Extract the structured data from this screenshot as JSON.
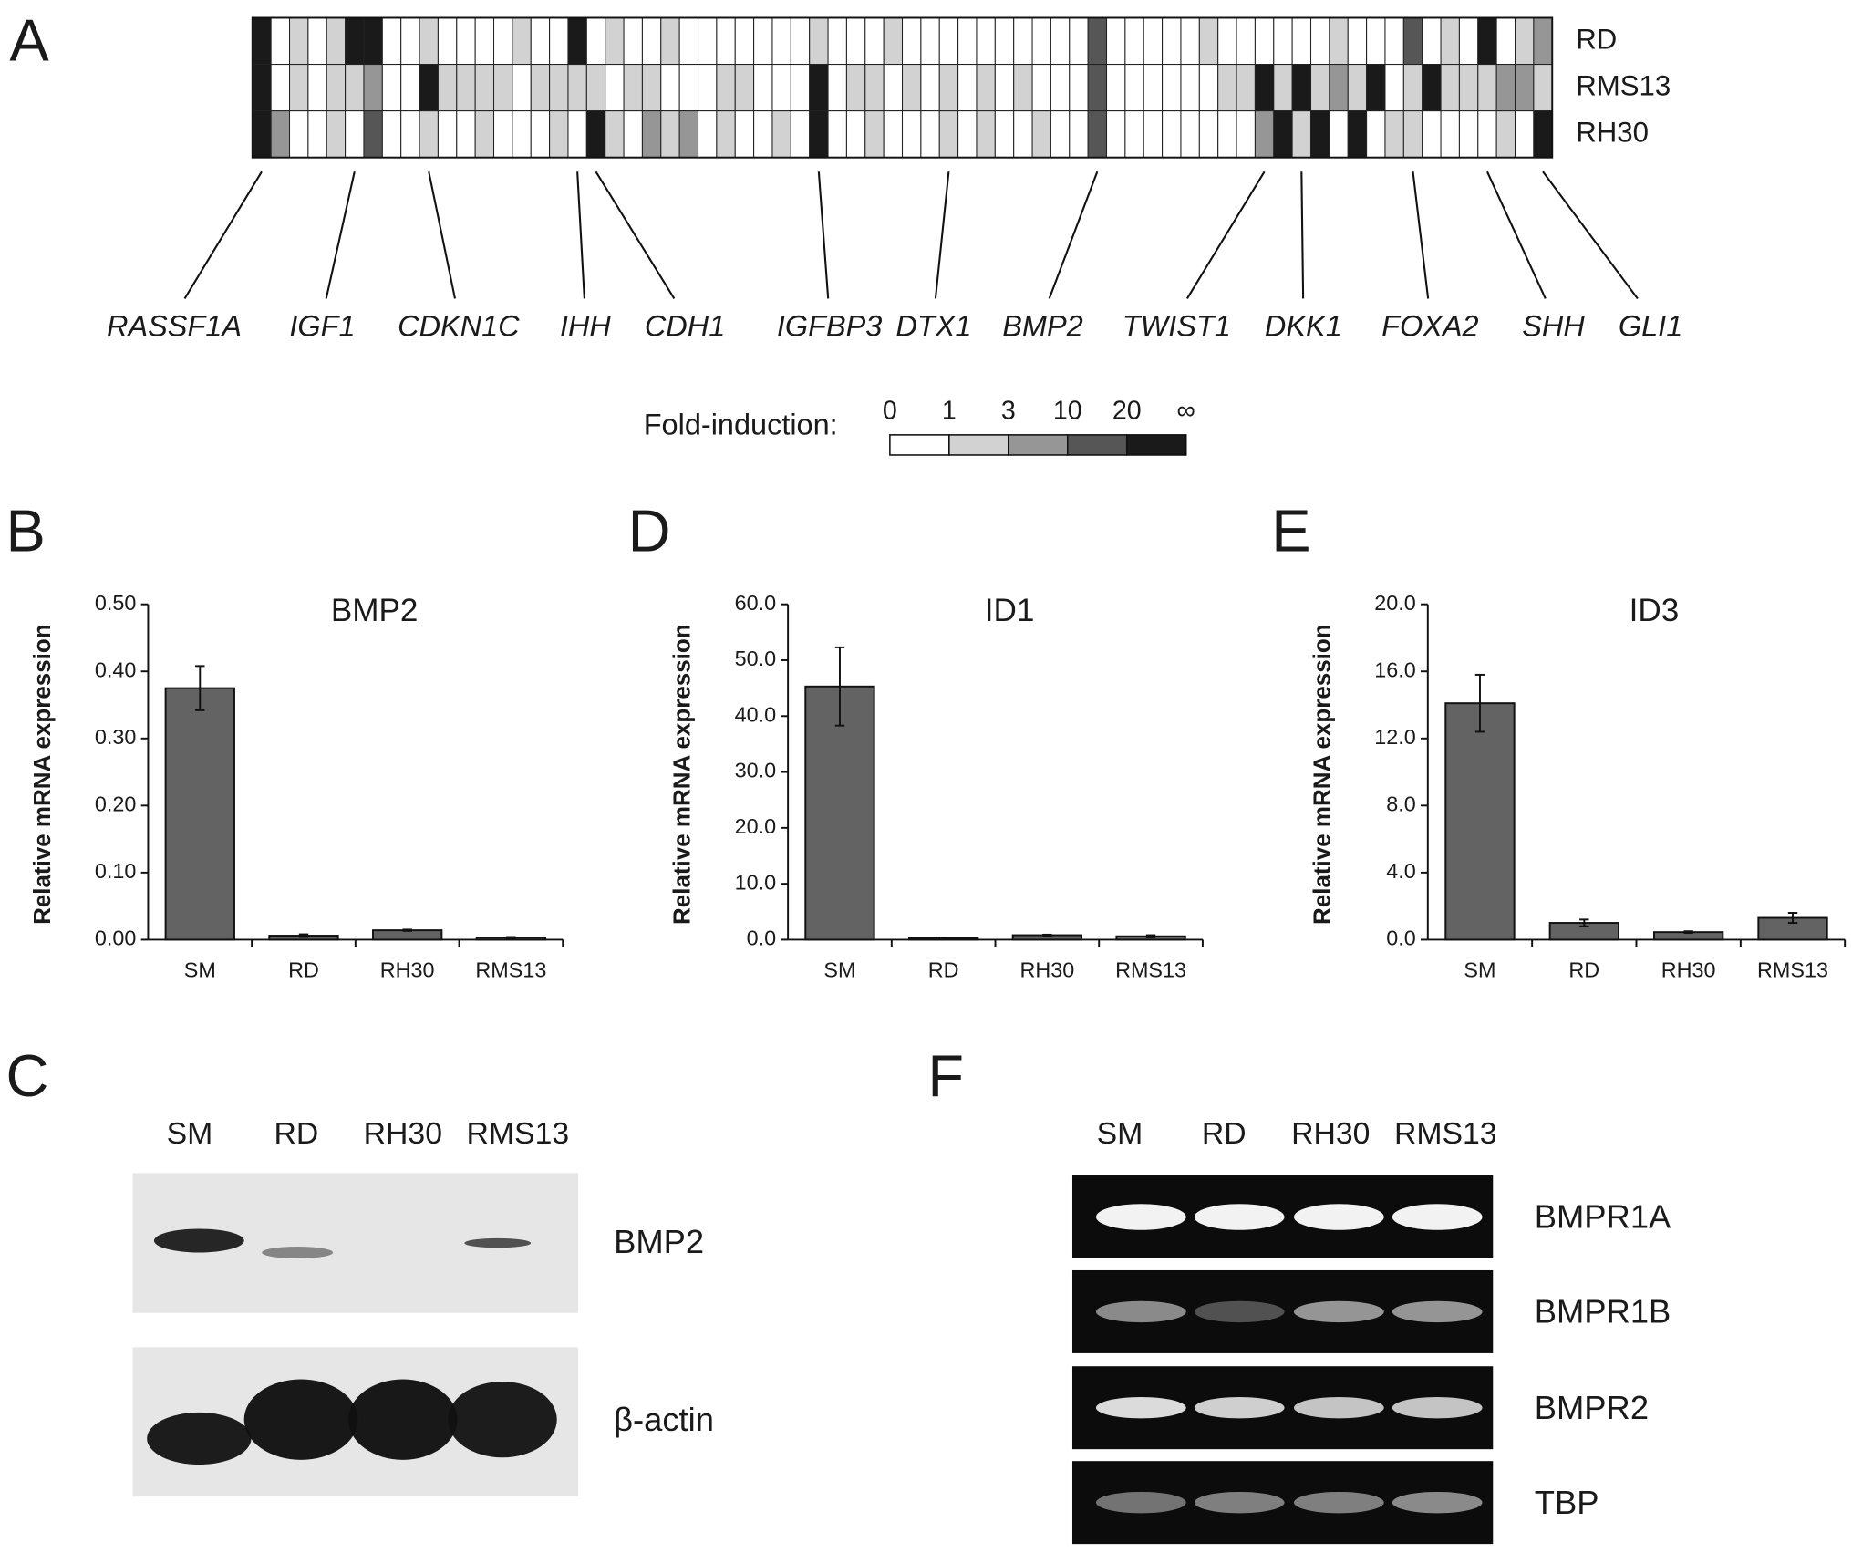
{
  "chart_data": [
    {
      "type": "heatmap",
      "panel_label": "A",
      "rows": [
        "RD",
        "RMS13",
        "RH30"
      ],
      "values": [
        [
          4,
          0,
          1,
          0,
          1,
          4,
          4,
          0,
          0,
          1,
          0,
          0,
          0,
          0,
          1,
          0,
          0,
          4,
          0,
          1,
          0,
          0,
          1,
          0,
          0,
          0,
          0,
          0,
          0,
          0,
          1,
          0,
          0,
          0,
          1,
          0,
          0,
          0,
          0,
          0,
          0,
          0,
          0,
          0,
          0,
          3,
          0,
          0,
          0,
          0,
          0,
          1,
          0,
          0,
          0,
          0,
          0,
          0,
          1,
          0,
          0,
          0,
          3,
          0,
          1,
          0,
          4,
          0,
          1,
          2
        ],
        [
          4,
          0,
          1,
          0,
          1,
          1,
          2,
          0,
          0,
          4,
          1,
          1,
          1,
          1,
          0,
          1,
          1,
          1,
          1,
          0,
          1,
          1,
          0,
          0,
          0,
          1,
          1,
          0,
          0,
          0,
          4,
          0,
          1,
          1,
          0,
          1,
          0,
          1,
          0,
          1,
          0,
          1,
          0,
          0,
          0,
          3,
          0,
          0,
          0,
          0,
          0,
          0,
          1,
          1,
          4,
          1,
          4,
          1,
          2,
          1,
          4,
          0,
          1,
          4,
          1,
          1,
          1,
          2,
          2,
          1
        ],
        [
          4,
          2,
          0,
          0,
          1,
          0,
          3,
          0,
          0,
          1,
          0,
          0,
          1,
          0,
          0,
          0,
          1,
          0,
          4,
          1,
          0,
          2,
          1,
          2,
          0,
          1,
          0,
          0,
          1,
          0,
          4,
          0,
          0,
          1,
          0,
          0,
          0,
          1,
          0,
          1,
          0,
          0,
          1,
          0,
          0,
          3,
          0,
          0,
          0,
          0,
          0,
          0,
          0,
          0,
          2,
          4,
          1,
          4,
          0,
          4,
          0,
          1,
          1,
          0,
          0,
          0,
          0,
          1,
          0,
          4
        ]
      ],
      "genes": [
        "RASSF1A",
        "IGF1",
        "CDKN1C",
        "IHH",
        "CDH1",
        "IGFBP3",
        "DTX1",
        "BMP2",
        "TWIST1",
        "DKK1",
        "FOXA2",
        "SHH",
        "GLI1"
      ],
      "gene_columns": [
        0,
        5,
        9,
        17,
        18,
        30,
        37,
        45,
        54,
        56,
        62,
        66,
        69
      ],
      "legend_title": "Fold-induction:",
      "legend_ticks": [
        0,
        1,
        3,
        10,
        20,
        "∞"
      ],
      "colors": [
        "#ffffff",
        "#d2d2d2",
        "#969696",
        "#565656",
        "#1a1a1a"
      ]
    },
    {
      "type": "bar",
      "panel_label": "B",
      "title": "BMP2",
      "ylabel": "Relative mRNA expression",
      "categories": [
        "SM",
        "RD",
        "RH30",
        "RMS13"
      ],
      "values": [
        0.375,
        0.006,
        0.014,
        0.003
      ],
      "errors": [
        0.033,
        0.002,
        0.001,
        0.001
      ],
      "color": "#636363",
      "ylim": [
        0,
        0.5
      ],
      "yticks": [
        {
          "value": 0,
          "label": "0.00"
        },
        {
          "value": 0.1,
          "label": "0.10"
        },
        {
          "value": 0.2,
          "label": "0.20"
        },
        {
          "value": 0.3,
          "label": "0.30"
        },
        {
          "value": 0.4,
          "label": "0.40"
        },
        {
          "value": 0.5,
          "label": "0.50"
        }
      ]
    },
    {
      "type": "bar",
      "panel_label": "D",
      "title": "ID1",
      "ylabel": "Relative mRNA expression",
      "categories": [
        "SM",
        "RD",
        "RH30",
        "RMS13"
      ],
      "values": [
        45.3,
        0.3,
        0.8,
        0.6
      ],
      "errors": [
        7,
        0.1,
        0.1,
        0.2
      ],
      "color": "#636363",
      "ylim": [
        0,
        60
      ],
      "yticks": [
        {
          "value": 0,
          "label": "0.0"
        },
        {
          "value": 10,
          "label": "10.0"
        },
        {
          "value": 20,
          "label": "20.0"
        },
        {
          "value": 30,
          "label": "30.0"
        },
        {
          "value": 40,
          "label": "40.0"
        },
        {
          "value": 50,
          "label": "50.0"
        },
        {
          "value": 60,
          "label": "60.0"
        }
      ]
    },
    {
      "type": "bar",
      "panel_label": "E",
      "title": "ID3",
      "ylabel": "Relative mRNA expression",
      "categories": [
        "SM",
        "RD",
        "RH30",
        "RMS13"
      ],
      "values": [
        14.1,
        1.0,
        0.45,
        1.3
      ],
      "errors": [
        1.7,
        0.2,
        0.05,
        0.3
      ],
      "color": "#636363",
      "ylim": [
        0,
        20
      ],
      "yticks": [
        {
          "value": 0,
          "label": "0.0"
        },
        {
          "value": 4,
          "label": "4.0"
        },
        {
          "value": 8,
          "label": "8.0"
        },
        {
          "value": 12,
          "label": "12.0"
        },
        {
          "value": 16,
          "label": "16.0"
        },
        {
          "value": 20,
          "label": "20.0"
        }
      ]
    },
    {
      "type": "western_blot",
      "panel_label": "C",
      "lanes": [
        "SM",
        "RD",
        "RH30",
        "RMS13"
      ],
      "rows": [
        "BMP2",
        "β-actin"
      ]
    },
    {
      "type": "gel",
      "panel_label": "F",
      "lanes": [
        "SM",
        "RD",
        "RH30",
        "RMS13"
      ],
      "rows": [
        "BMPR1A",
        "BMPR1B",
        "BMPR2",
        "TBP"
      ]
    }
  ]
}
